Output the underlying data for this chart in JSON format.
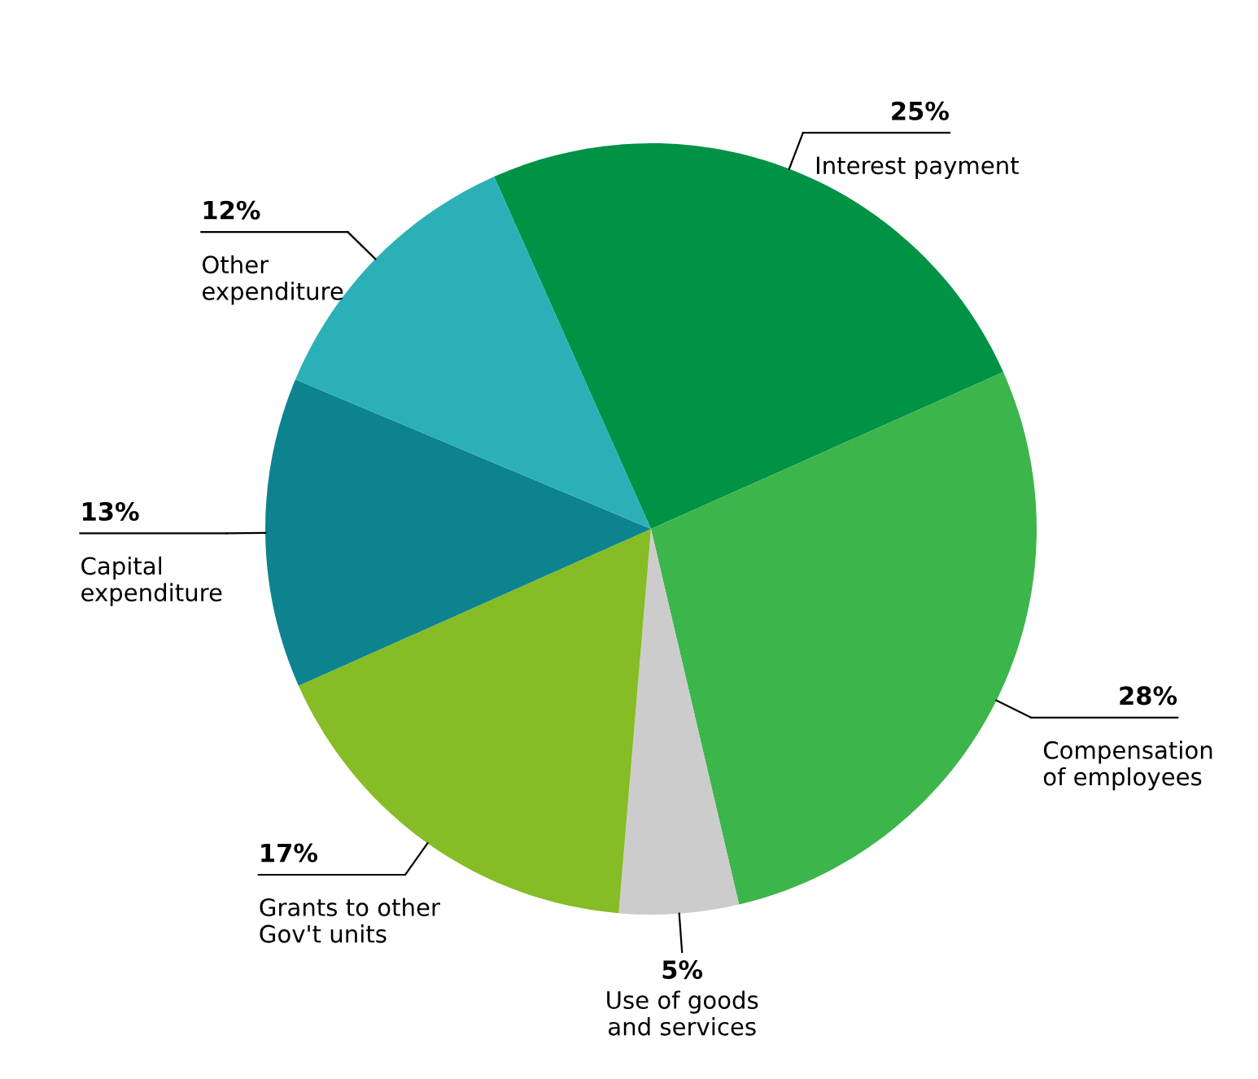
{
  "chart_data": {
    "type": "pie",
    "categories": [
      "Interest payment",
      "Compensation\nof employees",
      "Use of goods\nand services",
      "Grants to other\nGov't units",
      "Capital\nexpenditure",
      "Other\nexpenditure"
    ],
    "values": [
      25,
      28,
      5,
      17,
      13,
      12
    ],
    "value_labels": [
      "25%",
      "28%",
      "5%",
      "17%",
      "13%",
      "12%"
    ],
    "colors": [
      "#009245",
      "#3cb54a",
      "#cccccc",
      "#86bc25",
      "#0d8390",
      "#2bb0b8"
    ],
    "legend": false
  }
}
